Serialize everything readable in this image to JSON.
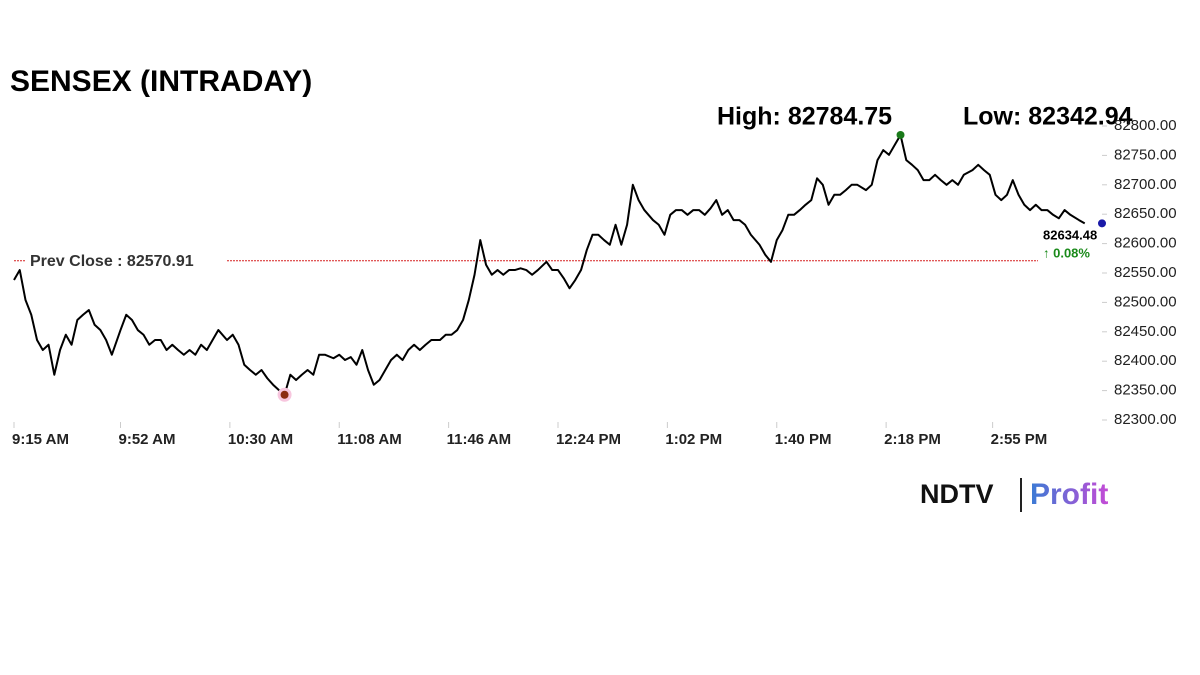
{
  "chart_data": {
    "type": "line",
    "title": "SENSEX (INTRADAY)",
    "high_label": "High: 82784.75",
    "low_label": "Low: 82342.94",
    "prev_close": {
      "label": "Prev Close : 82570.91",
      "value": 82570.91,
      "color": "#d62020"
    },
    "last_label": "82634.48",
    "change_label": "↑ 0.08%",
    "logo": {
      "left": "NDTV",
      "right": "Profit"
    },
    "color": "#000000",
    "high_index": 150,
    "high_color": "#1a7a1a",
    "low_index": 46,
    "low_color": "#8b2a10",
    "last_color": "#1a1aa8",
    "x": [
      0,
      2,
      4,
      6,
      8,
      10,
      12,
      14,
      16,
      18,
      20,
      22,
      24,
      26,
      28,
      30,
      32,
      34,
      37,
      39,
      41,
      43,
      45,
      47,
      49,
      51,
      53,
      55,
      57,
      59,
      61,
      63,
      65,
      67,
      69,
      71,
      74,
      76,
      78,
      80,
      82,
      84,
      86,
      88,
      90,
      92,
      94,
      96,
      98,
      100,
      102,
      104,
      106,
      108,
      111,
      113,
      115,
      117,
      119,
      121,
      123,
      125,
      127,
      129,
      131,
      133,
      135,
      137,
      139,
      141,
      143,
      145,
      148,
      150,
      152,
      154,
      156,
      158,
      160,
      162,
      164,
      166,
      168,
      170,
      172,
      174,
      176,
      178,
      180,
      182,
      185,
      187,
      189,
      191,
      193,
      195,
      197,
      199,
      201,
      203,
      205,
      207,
      209,
      211,
      213,
      215,
      217,
      219,
      222,
      224,
      226,
      228,
      230,
      232,
      234,
      236,
      238,
      240,
      242,
      244,
      246,
      248,
      250,
      252,
      254,
      256,
      259,
      261,
      263,
      265,
      267,
      269,
      271,
      273,
      275,
      277,
      279,
      281,
      283,
      285,
      287,
      289,
      291,
      293,
      296,
      298,
      300,
      302,
      304,
      306,
      308,
      310,
      312,
      314,
      316,
      318,
      320,
      322,
      324,
      326,
      328,
      330,
      333,
      335,
      337,
      339,
      341,
      343,
      345,
      347,
      349,
      351,
      353,
      355,
      357,
      359,
      361,
      363,
      365,
      367,
      370,
      372
    ],
    "values": [
      82538,
      82555,
      82504,
      82479,
      82436,
      82419,
      82428,
      82377,
      82419,
      82445,
      82428,
      82470,
      82479,
      82487,
      82462,
      82453,
      82436,
      82411,
      82453,
      82479,
      82470,
      82453,
      82445,
      82428,
      82436,
      82436,
      82419,
      82428,
      82419,
      82411,
      82419,
      82411,
      82428,
      82419,
      82436,
      82453,
      82436,
      82445,
      82428,
      82394,
      82385,
      82377,
      82385,
      82371,
      82360,
      82351,
      82342.94,
      82377,
      82368,
      82377,
      82385,
      82377,
      82411,
      82411,
      82405,
      82411,
      82402,
      82407,
      82394,
      82419,
      82385,
      82360,
      82368,
      82385,
      82402,
      82411,
      82402,
      82419,
      82428,
      82419,
      82428,
      82436,
      82436,
      82445,
      82445,
      82453,
      82470,
      82504,
      82547,
      82606,
      82564,
      82547,
      82555,
      82547,
      82555,
      82555,
      82558,
      82555,
      82547,
      82555,
      82569,
      82555,
      82555,
      82541,
      82524,
      82538,
      82555,
      82589,
      82615,
      82615,
      82606,
      82598,
      82632,
      82598,
      82632,
      82700,
      82674,
      82657,
      82640,
      82632,
      82615,
      82649,
      82657,
      82657,
      82649,
      82657,
      82657,
      82649,
      82660,
      82674,
      82649,
      82657,
      82640,
      82640,
      82632,
      82615,
      82598,
      82581,
      82569,
      82606,
      82623,
      82649,
      82649,
      82657,
      82666,
      82674,
      82711,
      82700,
      82666,
      82683,
      82683,
      82691,
      82700,
      82700,
      82691,
      82700,
      82742,
      82759,
      82751,
      82768,
      82784.75,
      82742,
      82734,
      82725,
      82708,
      82708,
      82717,
      82708,
      82700,
      82708,
      82700,
      82717,
      82725,
      82734,
      82725,
      82717,
      82683,
      82674,
      82683,
      82708,
      82683,
      82666,
      82657,
      82666,
      82657,
      82657,
      82649,
      82643,
      82657,
      82649,
      82640,
      82634.48
    ],
    "xlim": [
      0,
      378
    ],
    "xticks": [
      {
        "value": 0,
        "label": "9:15 AM"
      },
      {
        "value": 37,
        "label": "9:52 AM"
      },
      {
        "value": 75,
        "label": "10:30 AM"
      },
      {
        "value": 113,
        "label": "11:08 AM"
      },
      {
        "value": 151,
        "label": "11:46 AM"
      },
      {
        "value": 189,
        "label": "12:24 PM"
      },
      {
        "value": 227,
        "label": "1:02 PM"
      },
      {
        "value": 265,
        "label": "1:40 PM"
      },
      {
        "value": 303,
        "label": "2:18 PM"
      },
      {
        "value": 340,
        "label": "2:55 PM"
      }
    ],
    "ylim": [
      82300,
      82800
    ],
    "yticks": [
      {
        "value": 82300,
        "label": "82300.00"
      },
      {
        "value": 82350,
        "label": "82350.00"
      },
      {
        "value": 82400,
        "label": "82400.00"
      },
      {
        "value": 82450,
        "label": "82450.00"
      },
      {
        "value": 82500,
        "label": "82500.00"
      },
      {
        "value": 82550,
        "label": "82550.00"
      },
      {
        "value": 82600,
        "label": "82600.00"
      },
      {
        "value": 82650,
        "label": "82650.00"
      },
      {
        "value": 82700,
        "label": "82700.00"
      },
      {
        "value": 82750,
        "label": "82750.00"
      },
      {
        "value": 82800,
        "label": "82800.00"
      }
    ]
  }
}
